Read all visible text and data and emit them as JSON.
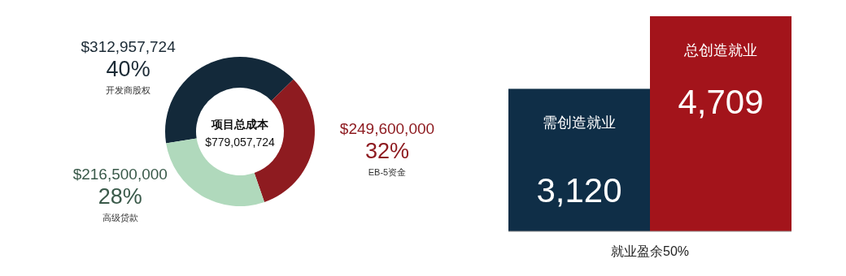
{
  "chart_data": [
    {
      "type": "donut",
      "categories": [
        "开发商股权",
        "EB-5资金",
        "高级贷款"
      ],
      "values": [
        312957724,
        249600000,
        216500000
      ],
      "colors": [
        "#13293a",
        "#8e1b20",
        "#b0d9bc"
      ],
      "value_labels": [
        "$312,957,724",
        "$249,600,000",
        "$216,500,000"
      ],
      "annotations": [
        {
          "text": "40%",
          "x": "开发商股权"
        },
        {
          "text": "32%",
          "x": "EB-5资金"
        },
        {
          "text": "28%",
          "x": "高级贷款"
        },
        "项目总成本",
        "$779,057,724"
      ]
    },
    {
      "type": "bar",
      "categories": [
        "需创造就业",
        "总创造就业"
      ],
      "values": [
        3120,
        4709
      ],
      "colors": [
        "#0f2e47",
        "#a3141b"
      ],
      "value_labels": [
        "3,120",
        "4,709"
      ],
      "relative": false,
      "xlabel": "就业盈余50%"
    }
  ]
}
